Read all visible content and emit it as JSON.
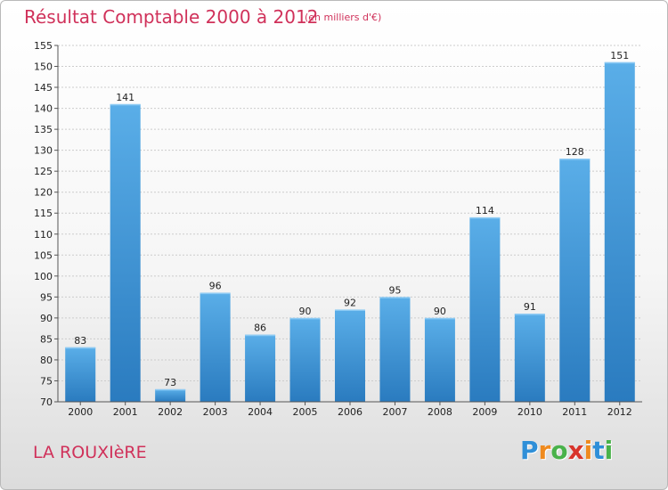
{
  "header": {
    "title": "Résultat Comptable 2000 à 2012",
    "subtitle": "(en milliers d'€)"
  },
  "footer": {
    "place": "LA ROUXIèRE",
    "logo_letters": [
      "P",
      "r",
      "o",
      "x",
      "i",
      "t",
      "i"
    ],
    "logo_colors": [
      "#2f8fd8",
      "#ef8a1e",
      "#49b24a",
      "#d8342b",
      "#ef8a1e",
      "#2f8fd8",
      "#49b24a"
    ]
  },
  "colors": {
    "title": "#d0315a",
    "bar_light": "#5aaee8",
    "bar_dark": "#2a7bbf",
    "grid": "#cccccc"
  },
  "chart_data": {
    "type": "bar",
    "title": "Résultat Comptable 2000 à 2012",
    "subtitle": "(en milliers d'€)",
    "categories": [
      "2000",
      "2001",
      "2002",
      "2003",
      "2004",
      "2005",
      "2006",
      "2007",
      "2008",
      "2009",
      "2010",
      "2011",
      "2012"
    ],
    "values": [
      83,
      141,
      73,
      96,
      86,
      90,
      92,
      95,
      90,
      114,
      91,
      128,
      151
    ],
    "ylim": [
      70,
      155
    ],
    "yticks": [
      70,
      75,
      80,
      85,
      90,
      95,
      100,
      105,
      110,
      115,
      120,
      125,
      130,
      135,
      140,
      145,
      150,
      155
    ],
    "grid": true,
    "xlabel": "",
    "ylabel": ""
  }
}
